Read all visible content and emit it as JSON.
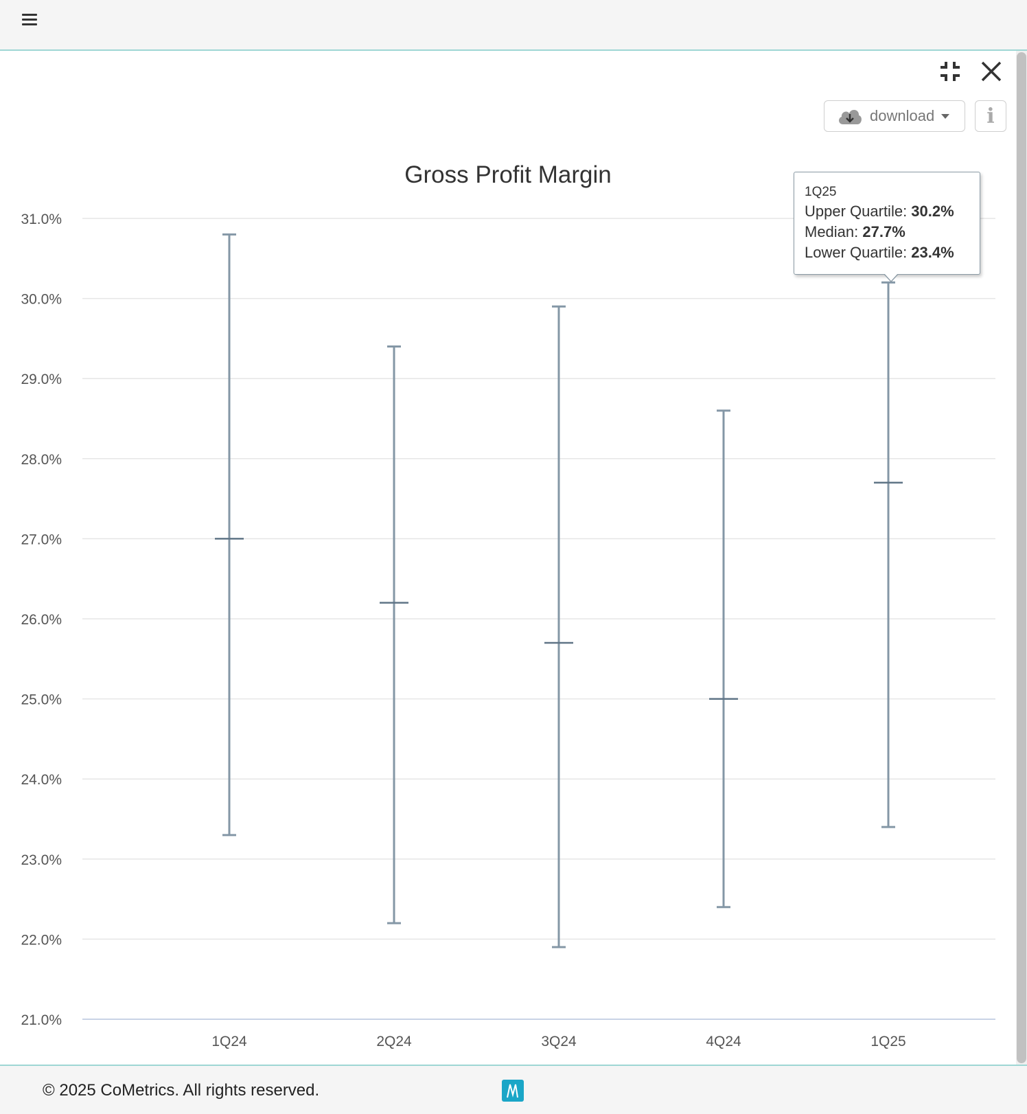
{
  "header": {
    "menu_icon": "hamburger-menu-icon"
  },
  "controls": {
    "collapse_icon": "collapse-icon",
    "close_icon": "close-icon",
    "download_label": "download",
    "download_icon": "cloud-download-icon",
    "info_label": "i"
  },
  "tooltip": {
    "category": "1Q25",
    "upper_label": "Upper Quartile: ",
    "upper_value": "30.2%",
    "median_label": "Median: ",
    "median_value": "27.7%",
    "lower_label": "Lower Quartile: ",
    "lower_value": "23.4%"
  },
  "chart_data": {
    "type": "error-bar",
    "title": "Gross Profit Margin",
    "xlabel": "",
    "ylabel": "",
    "categories": [
      "1Q24",
      "2Q24",
      "3Q24",
      "4Q24",
      "1Q25"
    ],
    "series": [
      {
        "upper": [
          30.8,
          29.4,
          29.9,
          28.6,
          30.2
        ],
        "median": [
          27.0,
          26.2,
          25.7,
          25.0,
          27.7
        ],
        "lower": [
          23.3,
          22.2,
          21.9,
          22.4,
          23.4
        ]
      }
    ],
    "yticks": [
      "31.0%",
      "30.0%",
      "29.0%",
      "28.0%",
      "27.0%",
      "26.0%",
      "25.0%",
      "24.0%",
      "23.0%",
      "22.0%",
      "21.0%"
    ],
    "ylim": [
      21,
      31
    ],
    "grid": true,
    "colors": {
      "whisker": "#8497a6",
      "median": "#5f7486",
      "grid": "#e6e6e6",
      "axis": "#c8d3e6"
    }
  },
  "footer": {
    "copyright": "© 2025 CoMetrics. All rights reserved.",
    "logo": "cometrics-logo-icon"
  }
}
